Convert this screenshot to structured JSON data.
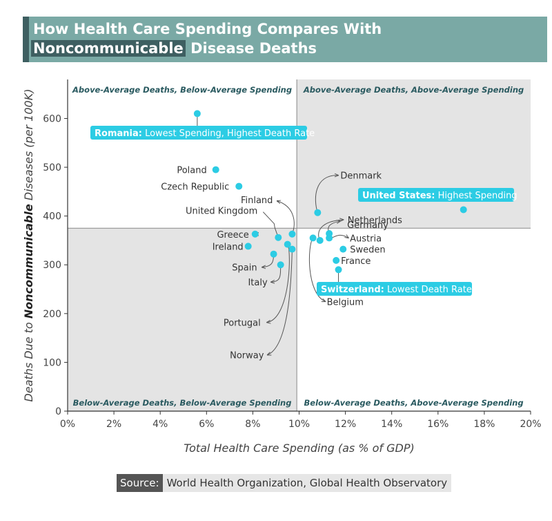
{
  "header": {
    "title_line1": "How Health Care Spending Compares With",
    "title_highlight": "Noncommunicable",
    "title_rest": " Disease Deaths"
  },
  "colors": {
    "point": "#2ccce4",
    "header_bg": "#7aa9a5",
    "header_dark": "#3e5f61",
    "quadrant_shade": "#e4e4e4",
    "label_text": "#2a5a60"
  },
  "chart_data": {
    "type": "scatter",
    "title": "How Health Care Spending Compares With Noncommunicable Disease Deaths",
    "xlabel": "Total Health Care Spending (as % of GDP)",
    "ylabel_parts": [
      "Deaths Due to ",
      "Noncommunicable",
      " Diseases (per 100K)"
    ],
    "xlim": [
      0,
      20
    ],
    "ylim": [
      0,
      680
    ],
    "x_ticks": [
      0,
      2,
      4,
      6,
      8,
      10,
      12,
      14,
      16,
      18,
      20
    ],
    "x_tick_labels": [
      "0%",
      "2%",
      "4%",
      "6%",
      "8%",
      "10%",
      "12%",
      "14%",
      "16%",
      "18%",
      "20%"
    ],
    "y_ticks": [
      0,
      100,
      200,
      300,
      400,
      500,
      600
    ],
    "y_tick_labels": [
      "0",
      "100",
      "200",
      "300",
      "400",
      "500",
      "600"
    ],
    "reference_lines": {
      "x_average": 9.9,
      "y_average": 375
    },
    "quadrant_labels": {
      "top_left": "Above-Average Deaths, Below-Average Spending",
      "top_right": "Above-Average Deaths, Above-Average Spending",
      "bottom_left": "Below-Average Deaths, Below-Average Spending",
      "bottom_right": "Below-Average Deaths, Above-Average Spending"
    },
    "points": [
      {
        "name": "Romania",
        "x": 5.6,
        "y": 610
      },
      {
        "name": "Poland",
        "x": 6.4,
        "y": 495
      },
      {
        "name": "Czech Republic",
        "x": 7.4,
        "y": 461
      },
      {
        "name": "Finland",
        "x": 9.7,
        "y": 363
      },
      {
        "name": "United Kingdom",
        "x": 9.1,
        "y": 356
      },
      {
        "name": "Greece",
        "x": 8.1,
        "y": 363
      },
      {
        "name": "Ireland",
        "x": 7.8,
        "y": 338
      },
      {
        "name": "Spain",
        "x": 8.9,
        "y": 322
      },
      {
        "name": "Italy",
        "x": 9.2,
        "y": 300
      },
      {
        "name": "Portugal",
        "x": 9.5,
        "y": 342
      },
      {
        "name": "Norway",
        "x": 9.7,
        "y": 332
      },
      {
        "name": "Denmark",
        "x": 10.8,
        "y": 407
      },
      {
        "name": "Netherlands",
        "x": 10.9,
        "y": 350
      },
      {
        "name": "Germany",
        "x": 11.3,
        "y": 364
      },
      {
        "name": "Austria",
        "x": 11.3,
        "y": 355
      },
      {
        "name": "Belgium",
        "x": 10.6,
        "y": 355
      },
      {
        "name": "Sweden",
        "x": 11.9,
        "y": 332
      },
      {
        "name": "France",
        "x": 11.6,
        "y": 309
      },
      {
        "name": "Switzerland",
        "x": 11.7,
        "y": 290
      },
      {
        "name": "United States",
        "x": 17.1,
        "y": 413
      }
    ],
    "callouts": [
      {
        "country": "Romania",
        "bold": "Romania:",
        "text": " Lowest Spending, Highest Death Rate"
      },
      {
        "country": "United States",
        "bold": "United States:",
        "text": " Highest Spending"
      },
      {
        "country": "Switzerland",
        "bold": "Switzerland:",
        "text": " Lowest Death Rate"
      }
    ]
  },
  "source": {
    "label": "Source:",
    "text": "World Health Organization, Global Health Observatory"
  }
}
